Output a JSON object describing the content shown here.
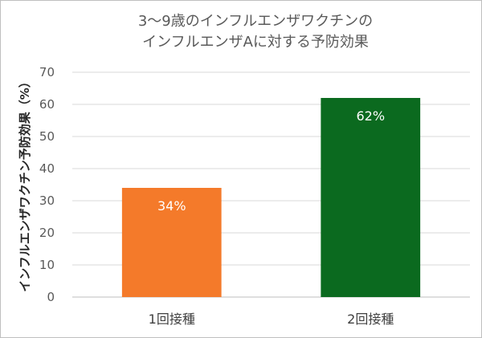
{
  "chart_data": {
    "type": "bar",
    "title_lines": [
      "3〜9歳のインフルエンザワクチンの",
      "インフルエンザAに対する予防効果"
    ],
    "xlabel": "",
    "ylabel": "インフルエンザワクチン予防効果（%）",
    "categories": [
      "1回接種",
      "2回接種"
    ],
    "values": [
      34,
      62
    ],
    "data_labels": [
      "34%",
      "62%"
    ],
    "bar_colors": [
      "#f47a2a",
      "#0b6a1f"
    ],
    "ylim": [
      0,
      70
    ],
    "yticks": [
      0,
      10,
      20,
      30,
      40,
      50,
      60,
      70
    ],
    "grid": true,
    "legend": "none"
  }
}
